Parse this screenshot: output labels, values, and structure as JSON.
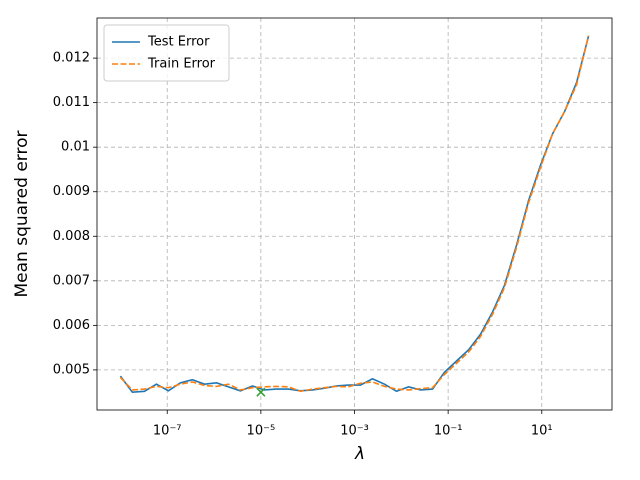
{
  "chart_data": {
    "type": "line",
    "xlabel": "λ",
    "ylabel": "Mean squared error",
    "xscale": "log",
    "grid": true,
    "legend": "upper left",
    "x": [
      1e-08,
      1.8e-08,
      3.26e-08,
      5.88e-08,
      1.06e-07,
      1.91e-07,
      3.46e-07,
      6.24e-07,
      1.13e-06,
      2.03e-06,
      3.66e-06,
      6.61e-06,
      1.19e-05,
      2.15e-05,
      3.89e-05,
      7.02e-05,
      0.000127,
      0.000229,
      0.000412,
      0.000744,
      0.00134,
      0.00242,
      0.00438,
      0.0079,
      0.0143,
      0.0257,
      0.0464,
      0.0838,
      0.151,
      0.273,
      0.492,
      0.889,
      1.6,
      2.89,
      5.22,
      9.43,
      17.0,
      30.7,
      55.4,
      100
    ],
    "series": [
      {
        "name": "Test Error",
        "color": "#1f77b4",
        "dash": false,
        "values": [
          0.00486,
          0.0045,
          0.00452,
          0.00468,
          0.00453,
          0.00471,
          0.00478,
          0.00468,
          0.00471,
          0.00462,
          0.00453,
          0.00464,
          0.00455,
          0.00457,
          0.00457,
          0.00453,
          0.00455,
          0.00459,
          0.00464,
          0.00466,
          0.00466,
          0.0048,
          0.00468,
          0.00452,
          0.00462,
          0.00455,
          0.00457,
          0.00495,
          0.0052,
          0.00545,
          0.0058,
          0.0063,
          0.0069,
          0.0078,
          0.0088,
          0.0096,
          0.0103,
          0.0108,
          0.01145,
          0.0125
        ]
      },
      {
        "name": "Train Error",
        "color": "#ff7f0e",
        "dash": true,
        "values": [
          0.00483,
          0.00455,
          0.00457,
          0.00463,
          0.0046,
          0.00468,
          0.00473,
          0.00465,
          0.00463,
          0.00468,
          0.00455,
          0.0046,
          0.00462,
          0.00463,
          0.00462,
          0.00452,
          0.00457,
          0.0046,
          0.00463,
          0.00462,
          0.0047,
          0.00473,
          0.00463,
          0.00457,
          0.00455,
          0.00458,
          0.0046,
          0.0049,
          0.00515,
          0.0054,
          0.00575,
          0.00625,
          0.00685,
          0.00775,
          0.00875,
          0.00955,
          0.0103,
          0.0108,
          0.0114,
          0.0125
        ]
      }
    ],
    "marker": {
      "x": 1e-05,
      "y": 0.0045,
      "color": "#2ca02c"
    },
    "xlim": [
      3.162e-09,
      316.2
    ],
    "xticks": [
      {
        "value": 1e-07,
        "label": "10⁻⁷"
      },
      {
        "value": 1e-05,
        "label": "10⁻⁵"
      },
      {
        "value": 0.001,
        "label": "10⁻³"
      },
      {
        "value": 0.1,
        "label": "10⁻¹"
      },
      {
        "value": 10,
        "label": "10¹"
      }
    ],
    "ylim": [
      0.0041,
      0.0129
    ],
    "yticks": [
      0.005,
      0.006,
      0.007,
      0.008,
      0.009,
      0.01,
      0.011,
      0.012
    ]
  }
}
